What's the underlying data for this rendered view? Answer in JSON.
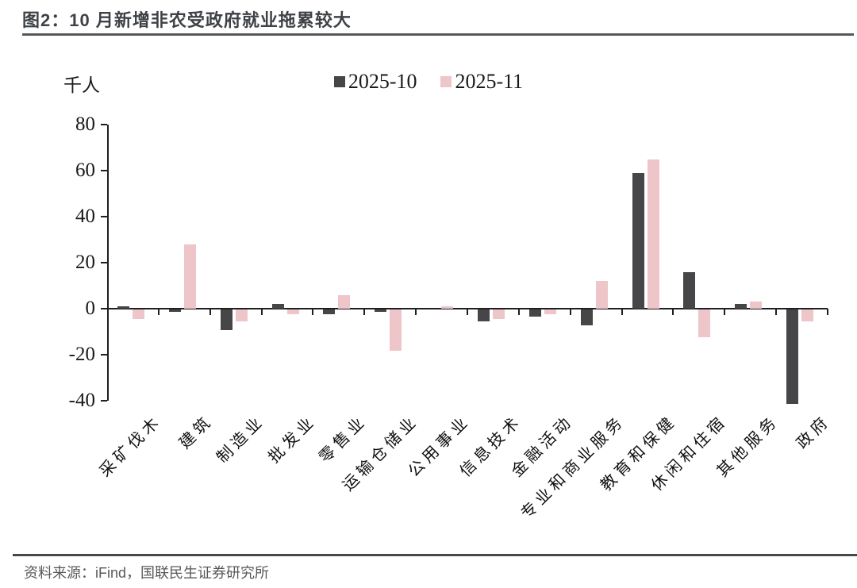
{
  "header": {
    "title": "图2：10 月新增非农受政府就业拖累较大"
  },
  "chart_data": {
    "type": "bar",
    "title": "图2：10 月新增非农受政府就业拖累较大",
    "unit_label": "千人",
    "ylabel": "千人",
    "xlabel": "",
    "ylim": [
      -40,
      80
    ],
    "yticks": [
      80,
      60,
      40,
      20,
      0,
      -20,
      -40
    ],
    "grid": false,
    "legend_position": "top-center",
    "categories": [
      "采矿伐木",
      "建筑",
      "制造业",
      "批发业",
      "零售业",
      "运输仓储业",
      "公用事业",
      "信息技术",
      "金融活动",
      "专业和商业服务",
      "教育和保健",
      "休闲和住宿",
      "其他服务",
      "政府"
    ],
    "series": [
      {
        "name": "2025-10",
        "color": "#464649",
        "values": [
          1,
          -1,
          -9,
          2,
          -2,
          -1,
          0,
          -5,
          -3,
          -7,
          59,
          16,
          2,
          -41
        ]
      },
      {
        "name": "2025-11",
        "color": "#eec5c8",
        "values": [
          -4,
          28,
          -5,
          -2,
          6,
          -18,
          1,
          -4,
          -2,
          12,
          65,
          -12,
          3,
          -5
        ]
      }
    ]
  },
  "footer": {
    "source": "资料来源：iFind，国联民生证券研究所"
  },
  "colors": {
    "axis": "#1f1f1f",
    "title_text": "#3e4247",
    "title_rule": "#55575b",
    "footer_rule": "#454749",
    "footer_text": "#595959"
  }
}
